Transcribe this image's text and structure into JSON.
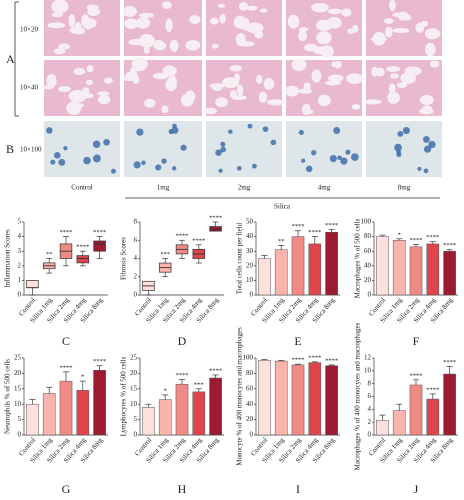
{
  "figure": {
    "rows": [
      "10×20",
      "10×40",
      "10×100"
    ],
    "parts": [
      "A",
      "B"
    ],
    "columns": [
      "Control",
      "1mg",
      "2mg",
      "4mg",
      "8mg"
    ],
    "group": "Silica"
  },
  "chart_data": [
    {
      "type": "box",
      "panel": "C",
      "ylabel": "Inflammation Scores",
      "categories": [
        "Control",
        "Silica 1mg",
        "Silica 2mg",
        "Silica 4mg",
        "Silica 8mg"
      ],
      "colors": [
        "#fde0dc",
        "#f8b4ad",
        "#f08a84",
        "#e0454e",
        "#9b1b30"
      ],
      "min": [
        0,
        1.5,
        2,
        2,
        2.5
      ],
      "q1": [
        0.5,
        1.8,
        2.5,
        2.2,
        3
      ],
      "median": [
        0.5,
        2,
        3,
        2.5,
        3.5
      ],
      "q3": [
        1,
        2.2,
        3.5,
        2.7,
        3.7
      ],
      "max": [
        1,
        2.5,
        4,
        3,
        4
      ],
      "annotations": [
        null,
        "**",
        "****",
        "****",
        "****"
      ],
      "ylim": [
        0,
        5
      ],
      "yticks": [
        0,
        1,
        2,
        3,
        4,
        5
      ]
    },
    {
      "type": "box",
      "panel": "D",
      "ylabel": "Fibrosis Scores",
      "categories": [
        "Control",
        "Silica 1mg",
        "Silica 2mg",
        "Silica 4mg",
        "Silica 8mg"
      ],
      "colors": [
        "#fde0dc",
        "#f8b4ad",
        "#f08a84",
        "#e0454e",
        "#9b1b30"
      ],
      "min": [
        0,
        2,
        4,
        3.5,
        7
      ],
      "q1": [
        0.5,
        2.5,
        4.5,
        4,
        7
      ],
      "median": [
        1,
        3,
        5,
        4.5,
        7.2
      ],
      "q3": [
        1.5,
        3.5,
        5.5,
        5,
        7.5
      ],
      "max": [
        1.5,
        4,
        6,
        5.5,
        8
      ],
      "annotations": [
        null,
        "***",
        "****",
        "****",
        "****"
      ],
      "ylim": [
        0,
        8
      ],
      "yticks": [
        0,
        2,
        4,
        6,
        8
      ]
    },
    {
      "type": "bar",
      "panel": "E",
      "ylabel": "Total cells count per field",
      "categories": [
        "Control",
        "Silica 1mg",
        "Silica 2mg",
        "Silica 4mg",
        "Silica 8mg"
      ],
      "colors": [
        "#fde0dc",
        "#f8b4ad",
        "#f08a84",
        "#e0454e",
        "#9b1b30"
      ],
      "values": [
        25,
        31,
        40,
        35,
        43
      ],
      "errors": [
        2,
        3,
        4,
        5,
        2
      ],
      "annotations": [
        null,
        "**",
        "****",
        "****",
        "****"
      ],
      "ylim": [
        0,
        50
      ],
      "yticks": [
        0,
        10,
        20,
        30,
        40,
        50
      ]
    },
    {
      "type": "bar",
      "panel": "F",
      "ylabel": "Macrophages % of 500 cells",
      "categories": [
        "Control",
        "Silica 1mg",
        "Silica 2mg",
        "Silica 4mg",
        "Silica 8mg"
      ],
      "colors": [
        "#fde0dc",
        "#f8b4ad",
        "#f08a84",
        "#e0454e",
        "#9b1b30"
      ],
      "values": [
        80,
        75,
        66,
        70,
        60
      ],
      "errors": [
        2,
        2,
        3,
        3,
        2
      ],
      "annotations": [
        null,
        "*",
        "****",
        "****",
        "****"
      ],
      "ylim": [
        0,
        100
      ],
      "yticks": [
        0,
        20,
        40,
        60,
        80,
        100
      ]
    },
    {
      "type": "bar",
      "panel": "G",
      "ylabel": "Neutrophils % of 500 cells",
      "categories": [
        "Control",
        "Silica 1mg",
        "Silica 2mg",
        "Silica 4mg",
        "Silica 8mg"
      ],
      "colors": [
        "#fde0dc",
        "#f8b4ad",
        "#f08a84",
        "#e0454e",
        "#9b1b30"
      ],
      "values": [
        10,
        13.5,
        17.5,
        14.5,
        21
      ],
      "errors": [
        1.5,
        2,
        3,
        3,
        1.5
      ],
      "annotations": [
        null,
        null,
        "****",
        "*",
        "****"
      ],
      "ylim": [
        0,
        25
      ],
      "yticks": [
        0,
        5,
        10,
        15,
        20,
        25
      ]
    },
    {
      "type": "bar",
      "panel": "H",
      "ylabel": "Lymphocytes % of 500 cells",
      "categories": [
        "Control",
        "Silica 1mg",
        "Silica 2mg",
        "Silica 4mg",
        "Silica 8mg"
      ],
      "colors": [
        "#fde0dc",
        "#f8b4ad",
        "#f08a84",
        "#e0454e",
        "#9b1b30"
      ],
      "values": [
        9,
        11.5,
        16.5,
        14,
        18.5
      ],
      "errors": [
        1,
        1.5,
        1.5,
        1,
        1
      ],
      "annotations": [
        null,
        "*",
        "****",
        "***",
        "****"
      ],
      "ylim": [
        0,
        25
      ],
      "yticks": [
        0,
        5,
        10,
        15,
        20,
        25
      ]
    },
    {
      "type": "bar",
      "panel": "I",
      "ylabel": "Monocyte % of 400 monocytes and macrophages",
      "categories": [
        "Control",
        "Silica 1mg",
        "Silica 2mg",
        "Silica 4mg",
        "Silica 8mg"
      ],
      "colors": [
        "#fde0dc",
        "#f8b4ad",
        "#f08a84",
        "#e0454e",
        "#9b1b30"
      ],
      "values": [
        97,
        96,
        91,
        94,
        90
      ],
      "errors": [
        1,
        1,
        1,
        1,
        1
      ],
      "annotations": [
        null,
        null,
        "****",
        "****",
        "****"
      ],
      "ylim": [
        0,
        100
      ],
      "yticks": [
        0,
        20,
        40,
        60,
        80,
        100
      ]
    },
    {
      "type": "bar",
      "panel": "J",
      "ylabel": "Macrophages % of 400 monocytes and macrophages",
      "categories": [
        "Control",
        "Silica 1mg",
        "Silica 2mg",
        "Silica 4mg",
        "Silica 8mg"
      ],
      "colors": [
        "#fde0dc",
        "#f8b4ad",
        "#f08a84",
        "#e0454e",
        "#9b1b30"
      ],
      "values": [
        2.3,
        3.8,
        7.8,
        5.6,
        9.5
      ],
      "errors": [
        0.8,
        1,
        0.8,
        0.8,
        1.2
      ],
      "annotations": [
        null,
        null,
        "****",
        "****",
        "****"
      ],
      "ylim": [
        0,
        12
      ],
      "yticks": [
        0,
        2,
        4,
        6,
        8,
        10,
        12
      ]
    }
  ]
}
